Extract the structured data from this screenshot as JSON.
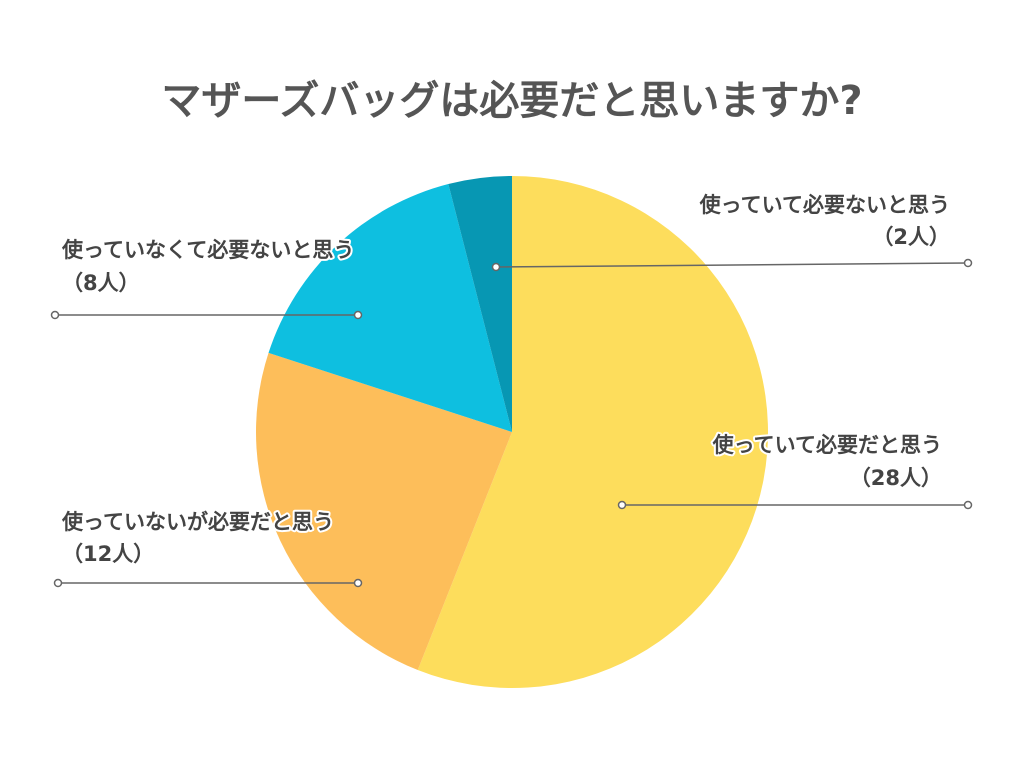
{
  "chart_data": {
    "type": "pie",
    "title": "マザーズバッグは必要だと思いますか?",
    "slices": [
      {
        "label": "使っていて必要だと思う",
        "value": 28,
        "display": "（28人）",
        "color": "#FDDD5C"
      },
      {
        "label": "使っていないが必要だと思う",
        "value": 12,
        "display": "（12人）",
        "color": "#FDBE5A"
      },
      {
        "label": "使っていなくて必要ないと思う",
        "value": 8,
        "display": "（8人）",
        "color": "#0EBFE0"
      },
      {
        "label": "使っていて必要ないと思う",
        "value": 2,
        "display": "（2人）",
        "color": "#0797B3"
      }
    ]
  }
}
